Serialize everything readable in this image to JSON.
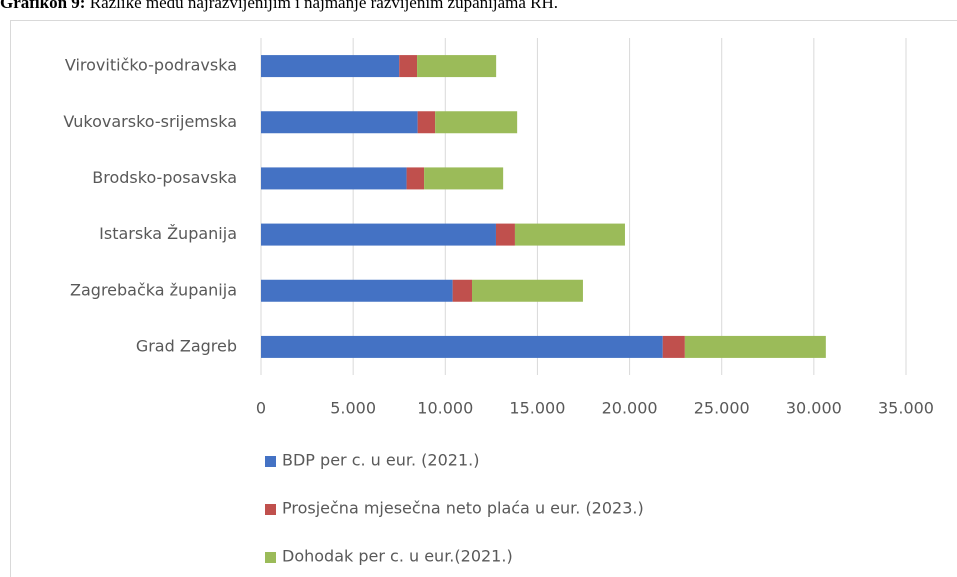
{
  "chart_data": {
    "type": "stacked_barh",
    "title_label": "Grafikon 9:",
    "title": "Razlike među najrazvijenijim i najmanje razvijenim županijama RH.",
    "categories": [
      "Virovitičko-podravska",
      "Vukovarsko-srijemska",
      "Brodsko-posavska",
      "Istarska Županija",
      "Zagrebačka županija",
      "Grad Zagreb"
    ],
    "series": [
      {
        "name": "BDP per c. u eur. (2021.)",
        "color": "#4472c4",
        "values": [
          7500,
          8500,
          7900,
          12750,
          10400,
          21800
        ]
      },
      {
        "name": "Prosječna mjesečna neto plaća u eur. (2023.)",
        "color": "#c0504d",
        "values": [
          970,
          950,
          950,
          1030,
          1050,
          1200
        ]
      },
      {
        "name": "Dohodak per c. u eur.(2021.)",
        "color": "#9bbb59",
        "values": [
          4290,
          4450,
          4290,
          5970,
          6020,
          7650
        ]
      }
    ],
    "xlim": [
      0,
      35000
    ],
    "xticks": [
      0,
      {
        "value": 5000,
        "label": "5.000"
      },
      {
        "value": 10000,
        "label": "10.000"
      },
      {
        "value": 15000,
        "label": "15.000"
      },
      {
        "value": 20000,
        "label": "20.000"
      },
      {
        "value": 25000,
        "label": "25.000"
      },
      {
        "value": 30000,
        "label": "30.000"
      },
      {
        "value": 35000,
        "label": "35.000"
      }
    ],
    "grid": true
  }
}
